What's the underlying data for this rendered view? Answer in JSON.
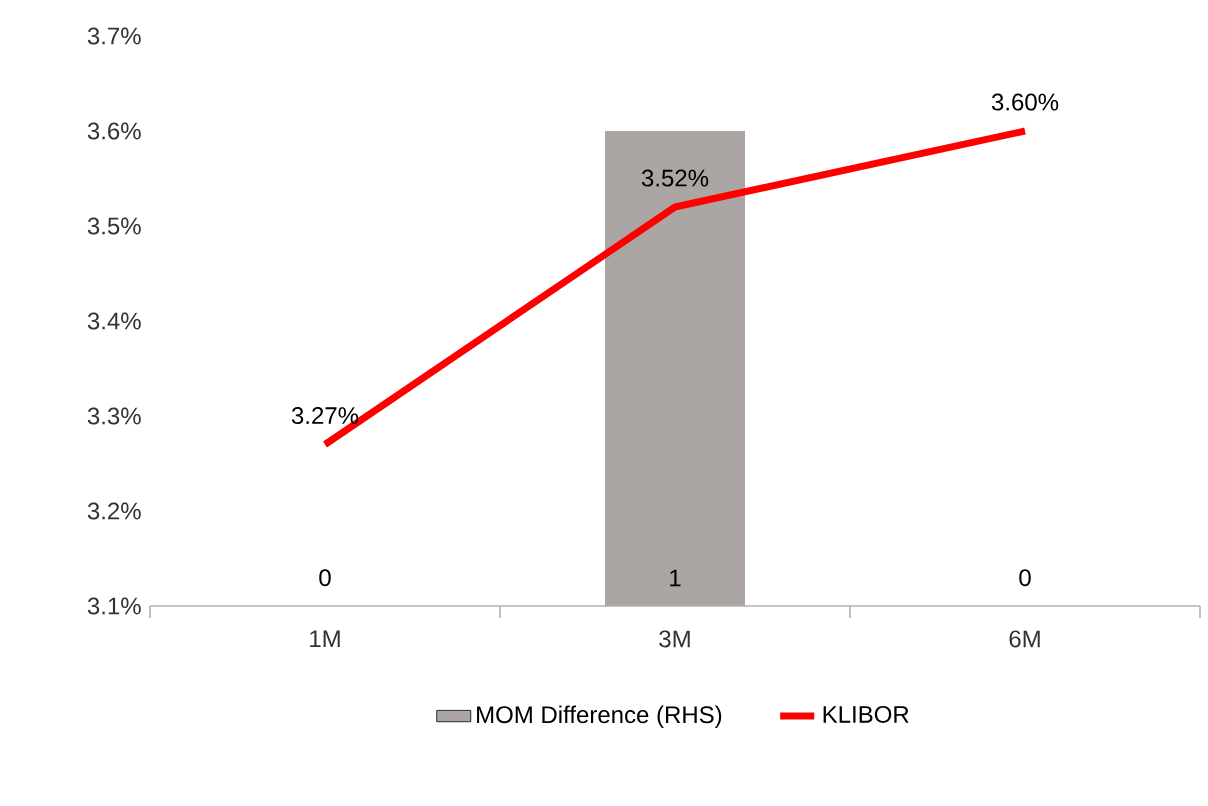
{
  "chart_data": {
    "type": "bar",
    "categories": [
      "1M",
      "3M",
      "6M"
    ],
    "series": [
      {
        "name": "MOM Difference (RHS)",
        "axis": "y2",
        "color": "#aba6a3",
        "values": [
          0,
          1,
          0
        ],
        "value_labels": [
          "0",
          "1",
          "0"
        ]
      },
      {
        "name": "KLIBOR",
        "type": "line",
        "color": "#ff0000",
        "values": [
          3.27,
          3.52,
          3.6
        ],
        "value_labels": [
          "3.27%",
          "3.52%",
          "3.60%"
        ]
      }
    ],
    "ylim": [
      3.1,
      3.7
    ],
    "yticks": [
      {
        "value": 3.1,
        "label": "3.1%"
      },
      {
        "value": 3.2,
        "label": "3.2%"
      },
      {
        "value": 3.3,
        "label": "3.3%"
      },
      {
        "value": 3.4,
        "label": "3.4%"
      },
      {
        "value": 3.5,
        "label": "3.5%"
      },
      {
        "value": 3.6,
        "label": "3.6%"
      },
      {
        "value": 3.7,
        "label": "3.7%"
      }
    ],
    "legend": "bottom",
    "grid": false,
    "marker": "none"
  }
}
